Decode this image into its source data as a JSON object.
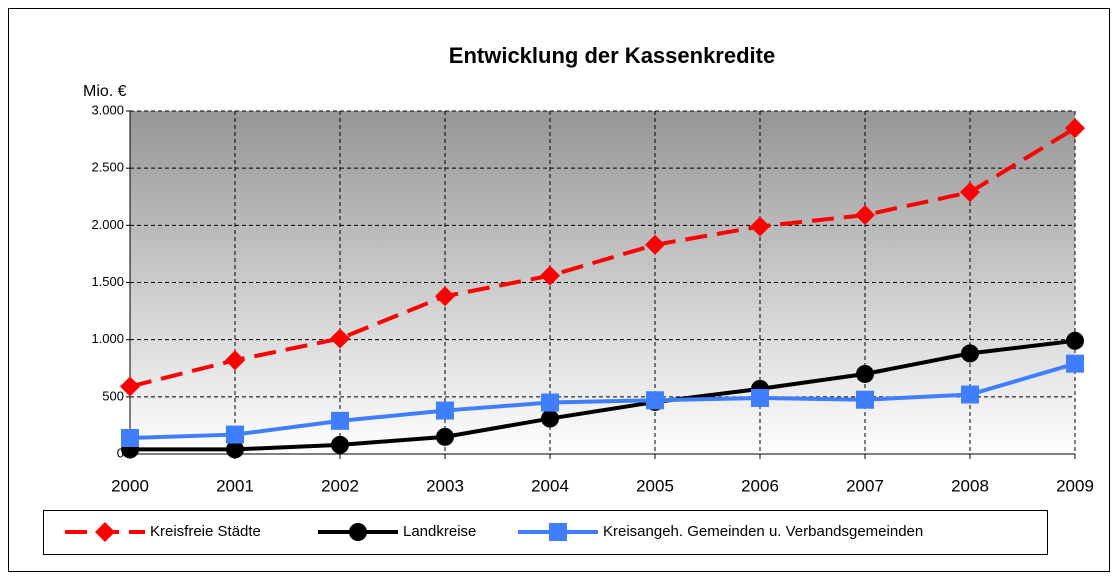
{
  "chart_data": {
    "type": "line",
    "title": "Entwicklung der Kassenkredite",
    "y_label": "Mio. €",
    "categories": [
      "2000",
      "2001",
      "2002",
      "2003",
      "2004",
      "2005",
      "2006",
      "2007",
      "2008",
      "2009"
    ],
    "series": [
      {
        "name": "Kreisfreie Städte",
        "color": "#ff0000",
        "marker": "diamond",
        "dashed": true,
        "values": [
          590,
          820,
          1010,
          1380,
          1560,
          1830,
          1990,
          2090,
          2290,
          2850
        ]
      },
      {
        "name": "Landkreise",
        "color": "#000000",
        "marker": "circle",
        "dashed": false,
        "values": [
          40,
          40,
          80,
          150,
          310,
          455,
          570,
          700,
          880,
          990
        ]
      },
      {
        "name": "Kreisangeh. Gemeinden u. Verbandsgemeinden",
        "color": "#3f7fff",
        "marker": "square",
        "dashed": false,
        "values": [
          140,
          170,
          290,
          380,
          450,
          470,
          490,
          475,
          520,
          790
        ]
      }
    ],
    "ylim": [
      0,
      3000
    ],
    "yticks": [
      0,
      500,
      {
        "value": 1000,
        "label": "1.000"
      },
      {
        "value": 1500,
        "label": "1.500"
      },
      {
        "value": 2000,
        "label": "2.000"
      },
      {
        "value": 2500,
        "label": "2.500"
      },
      {
        "value": 3000,
        "label": "3.000"
      }
    ],
    "grid": true,
    "legend": "bottom"
  }
}
